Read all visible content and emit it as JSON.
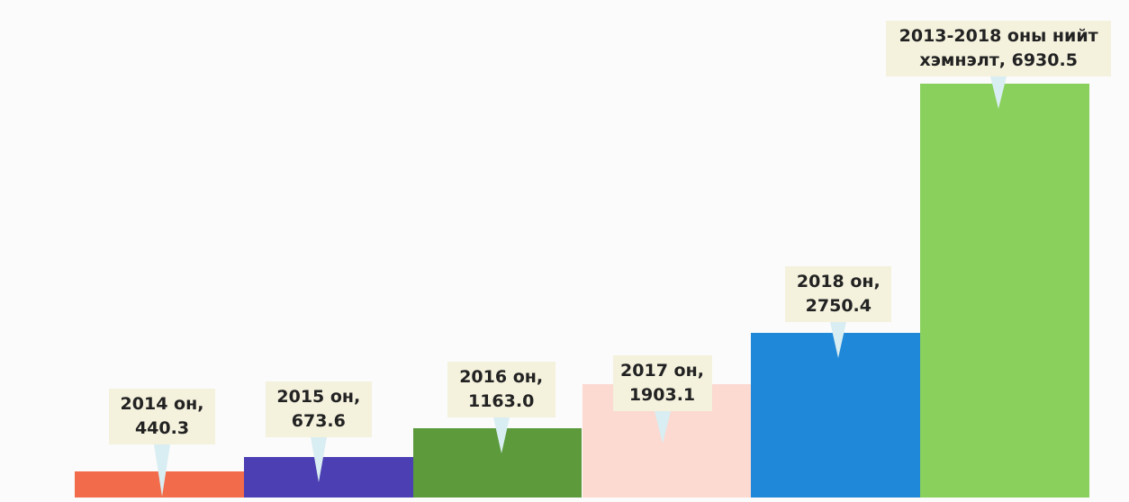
{
  "chart_data": {
    "type": "bar",
    "categories": [
      "2014 он,",
      "2015 он,",
      "2016 он,",
      "2017 он,",
      "2018 он,",
      "2013-2018 оны нийт хэмнэлт,"
    ],
    "values": [
      440.3,
      673.6,
      1163.0,
      1903.1,
      2750.4,
      6930.5
    ],
    "value_labels": [
      "440.3",
      "673.6",
      "1163.0",
      "1903.1",
      "2750.4",
      "6930.5"
    ],
    "colors": [
      "#f26b4a",
      "#4b3fb3",
      "#5c9a3c",
      "#fcd9d1",
      "#1f88d9",
      "#8ad05c"
    ],
    "ylim": [
      0,
      7000
    ]
  }
}
